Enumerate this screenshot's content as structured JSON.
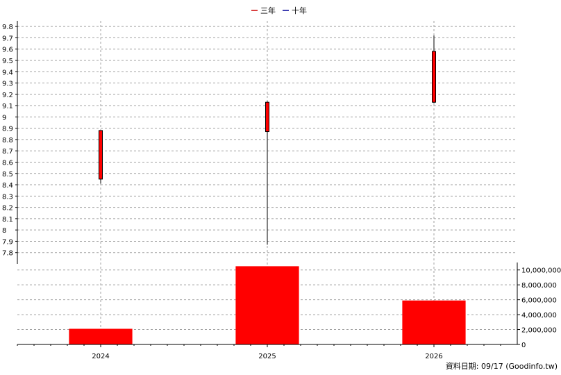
{
  "chart_data": {
    "type": "candlestick+bar",
    "legend": {
      "placement": "top-center",
      "entries": [
        {
          "label": "三年",
          "color": "#cc0000"
        },
        {
          "label": "十年",
          "color": "#000099"
        }
      ]
    },
    "categories": [
      "2024",
      "2025",
      "2026"
    ],
    "price_axis": {
      "range": [
        7.7,
        9.85
      ],
      "ticks": [
        "7.8",
        "7.9",
        "8",
        "8.1",
        "8.2",
        "8.3",
        "8.4",
        "8.5",
        "8.6",
        "8.7",
        "8.8",
        "8.9",
        "9",
        "9.1",
        "9.2",
        "9.3",
        "9.4",
        "9.5",
        "9.6",
        "9.7",
        "9.8"
      ],
      "grid": true
    },
    "candles": [
      {
        "x": "2024",
        "open": 8.45,
        "close": 8.88,
        "high": 8.88,
        "low": 8.41
      },
      {
        "x": "2025",
        "open": 8.87,
        "close": 9.13,
        "high": 9.14,
        "low": 7.87
      },
      {
        "x": "2026",
        "open": 9.13,
        "close": 9.58,
        "high": 9.72,
        "low": 9.12
      }
    ],
    "volume_axis": {
      "range": [
        0,
        11000000
      ],
      "ticks": [
        "0",
        "2,000,000",
        "4,000,000",
        "6,000,000",
        "8,000,000",
        "10,000,000"
      ],
      "grid": true
    },
    "volumes": [
      2100000,
      10500000,
      5900000
    ],
    "colors": {
      "candle": "#ff0000",
      "volume": "#ff0000",
      "grid": "#a0a0a0"
    },
    "footer": "資料日期: 09/17  (Goodinfo.tw)"
  }
}
